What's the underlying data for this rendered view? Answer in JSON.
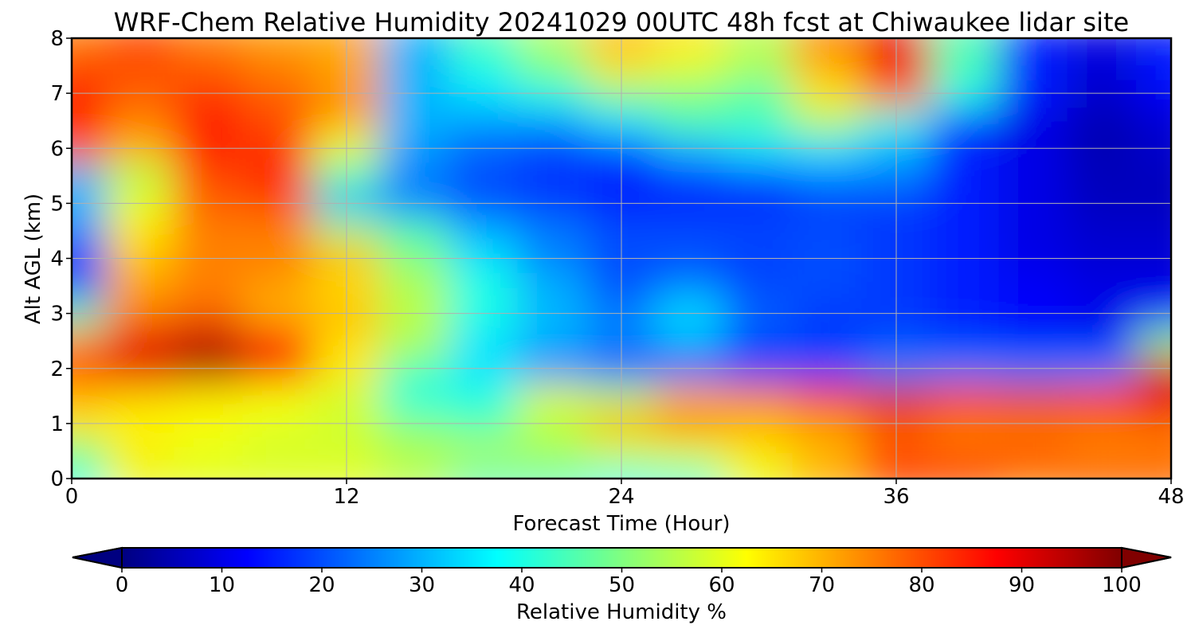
{
  "chart_data": {
    "type": "heatmap",
    "title": "WRF-Chem Relative Humidity 20241029 00UTC 48h fcst at Chiwaukee lidar site",
    "xlabel": "Forecast Time (Hour)",
    "ylabel": "Alt AGL (km)",
    "xlim": [
      0,
      48
    ],
    "ylim": [
      0,
      8
    ],
    "x_ticks": [
      "0",
      "12",
      "24",
      "36",
      "48"
    ],
    "y_ticks": [
      "0",
      "1",
      "2",
      "3",
      "4",
      "5",
      "6",
      "7",
      "8"
    ],
    "grid": true,
    "colormap": "jet",
    "colorbar": {
      "label": "Relative Humidity %",
      "range": [
        0,
        100
      ],
      "ticks": [
        "0",
        "10",
        "20",
        "30",
        "40",
        "50",
        "60",
        "70",
        "80",
        "90",
        "100"
      ],
      "extend": "both",
      "orientation": "horizontal",
      "placement": "bottom"
    },
    "grid_x_hours": [
      0,
      3,
      6,
      9,
      12,
      15,
      18,
      21,
      24,
      27,
      30,
      33,
      36,
      39,
      42,
      45,
      48
    ],
    "grid_z_km": [
      0,
      0.5,
      1,
      1.5,
      2,
      2.5,
      3,
      3.5,
      4,
      4.5,
      5,
      5.5,
      6,
      6.5,
      7,
      7.5,
      8
    ],
    "values": [
      [
        40,
        60,
        60,
        60,
        60,
        55,
        45,
        45,
        40,
        42,
        60,
        70,
        80,
        80,
        75,
        78,
        78
      ],
      [
        50,
        65,
        60,
        58,
        58,
        55,
        55,
        55,
        58,
        60,
        65,
        70,
        80,
        78,
        80,
        75,
        75
      ],
      [
        65,
        62,
        62,
        60,
        58,
        50,
        45,
        55,
        70,
        75,
        70,
        72,
        78,
        75,
        75,
        76,
        78
      ],
      [
        70,
        68,
        65,
        62,
        58,
        40,
        40,
        60,
        55,
        70,
        75,
        85,
        92,
        88,
        90,
        88,
        90
      ],
      [
        80,
        90,
        95,
        88,
        65,
        45,
        35,
        25,
        20,
        18,
        18,
        20,
        25,
        25,
        25,
        25,
        92
      ],
      [
        75,
        90,
        95,
        85,
        65,
        55,
        35,
        30,
        25,
        30,
        20,
        18,
        20,
        18,
        15,
        15,
        50
      ],
      [
        45,
        75,
        78,
        70,
        70,
        55,
        40,
        30,
        25,
        35,
        22,
        18,
        18,
        15,
        12,
        10,
        15
      ],
      [
        20,
        72,
        75,
        72,
        65,
        55,
        40,
        30,
        20,
        25,
        20,
        20,
        18,
        15,
        12,
        10,
        10
      ],
      [
        15,
        68,
        75,
        75,
        70,
        50,
        35,
        25,
        20,
        20,
        18,
        20,
        18,
        15,
        10,
        8,
        8
      ],
      [
        25,
        65,
        75,
        75,
        55,
        45,
        30,
        25,
        20,
        20,
        20,
        20,
        18,
        15,
        10,
        8,
        8
      ],
      [
        30,
        60,
        78,
        80,
        30,
        25,
        20,
        18,
        15,
        15,
        15,
        18,
        18,
        15,
        10,
        6,
        6
      ],
      [
        30,
        55,
        80,
        85,
        45,
        25,
        20,
        18,
        15,
        18,
        20,
        25,
        25,
        15,
        10,
        6,
        6
      ],
      [
        80,
        70,
        85,
        82,
        60,
        28,
        22,
        18,
        20,
        30,
        35,
        35,
        30,
        15,
        10,
        5,
        8
      ],
      [
        85,
        75,
        85,
        80,
        70,
        30,
        28,
        28,
        35,
        45,
        45,
        55,
        40,
        20,
        10,
        5,
        8
      ],
      [
        85,
        78,
        82,
        78,
        75,
        30,
        35,
        40,
        50,
        50,
        45,
        65,
        78,
        40,
        15,
        8,
        12
      ],
      [
        80,
        80,
        78,
        75,
        70,
        30,
        40,
        50,
        65,
        60,
        55,
        70,
        88,
        45,
        15,
        8,
        15
      ],
      [
        75,
        80,
        75,
        72,
        72,
        30,
        45,
        55,
        70,
        65,
        55,
        75,
        90,
        45,
        15,
        10,
        15
      ]
    ]
  }
}
